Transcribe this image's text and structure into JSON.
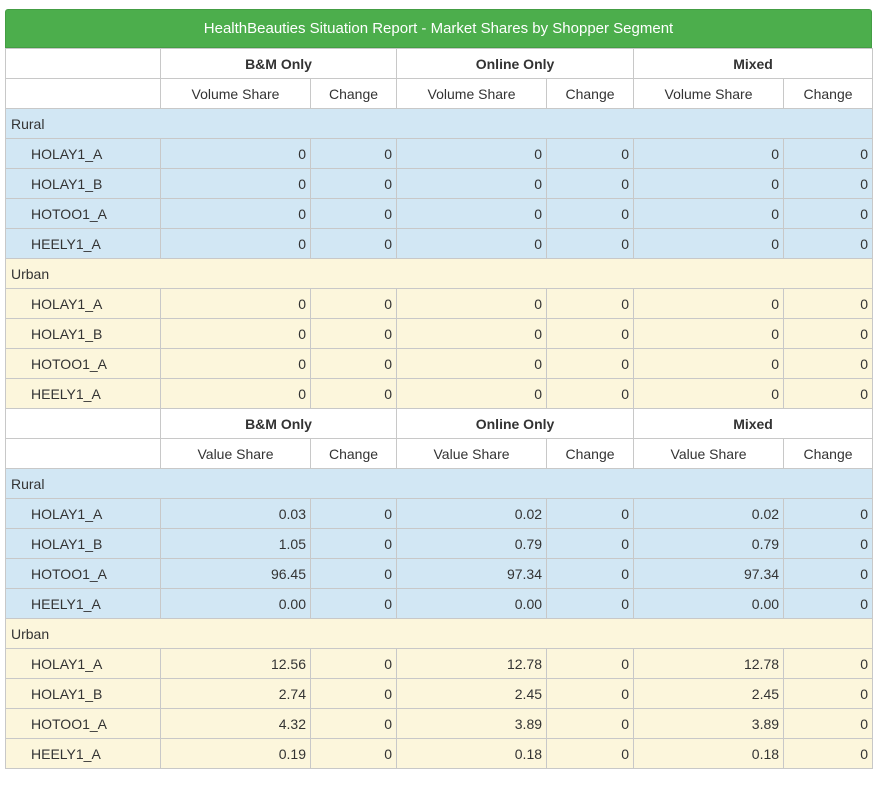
{
  "title": "HealthBeauties Situation Report - Market Shares by Shopper Segment",
  "groups": [
    "B&M Only",
    "Online Only",
    "Mixed"
  ],
  "sections": [
    {
      "metric_label": "Volume Share",
      "change_label": "Change",
      "segments": [
        {
          "name": "Rural",
          "rows": [
            {
              "brand": "HOLAY1_A",
              "values": [
                "0",
                "0",
                "0",
                "0",
                "0",
                "0"
              ]
            },
            {
              "brand": "HOLAY1_B",
              "values": [
                "0",
                "0",
                "0",
                "0",
                "0",
                "0"
              ]
            },
            {
              "brand": "HOTOO1_A",
              "values": [
                "0",
                "0",
                "0",
                "0",
                "0",
                "0"
              ]
            },
            {
              "brand": "HEELY1_A",
              "values": [
                "0",
                "0",
                "0",
                "0",
                "0",
                "0"
              ]
            }
          ]
        },
        {
          "name": "Urban",
          "rows": [
            {
              "brand": "HOLAY1_A",
              "values": [
                "0",
                "0",
                "0",
                "0",
                "0",
                "0"
              ]
            },
            {
              "brand": "HOLAY1_B",
              "values": [
                "0",
                "0",
                "0",
                "0",
                "0",
                "0"
              ]
            },
            {
              "brand": "HOTOO1_A",
              "values": [
                "0",
                "0",
                "0",
                "0",
                "0",
                "0"
              ]
            },
            {
              "brand": "HEELY1_A",
              "values": [
                "0",
                "0",
                "0",
                "0",
                "0",
                "0"
              ]
            }
          ]
        }
      ]
    },
    {
      "metric_label": "Value Share",
      "change_label": "Change",
      "segments": [
        {
          "name": "Rural",
          "rows": [
            {
              "brand": "HOLAY1_A",
              "values": [
                "0.03",
                "0",
                "0.02",
                "0",
                "0.02",
                "0"
              ]
            },
            {
              "brand": "HOLAY1_B",
              "values": [
                "1.05",
                "0",
                "0.79",
                "0",
                "0.79",
                "0"
              ]
            },
            {
              "brand": "HOTOO1_A",
              "values": [
                "96.45",
                "0",
                "97.34",
                "0",
                "97.34",
                "0"
              ]
            },
            {
              "brand": "HEELY1_A",
              "values": [
                "0.00",
                "0",
                "0.00",
                "0",
                "0.00",
                "0"
              ]
            }
          ]
        },
        {
          "name": "Urban",
          "rows": [
            {
              "brand": "HOLAY1_A",
              "values": [
                "12.56",
                "0",
                "12.78",
                "0",
                "12.78",
                "0"
              ]
            },
            {
              "brand": "HOLAY1_B",
              "values": [
                "2.74",
                "0",
                "2.45",
                "0",
                "2.45",
                "0"
              ]
            },
            {
              "brand": "HOTOO1_A",
              "values": [
                "4.32",
                "0",
                "3.89",
                "0",
                "3.89",
                "0"
              ]
            },
            {
              "brand": "HEELY1_A",
              "values": [
                "0.19",
                "0",
                "0.18",
                "0",
                "0.18",
                "0"
              ]
            }
          ]
        }
      ]
    }
  ]
}
